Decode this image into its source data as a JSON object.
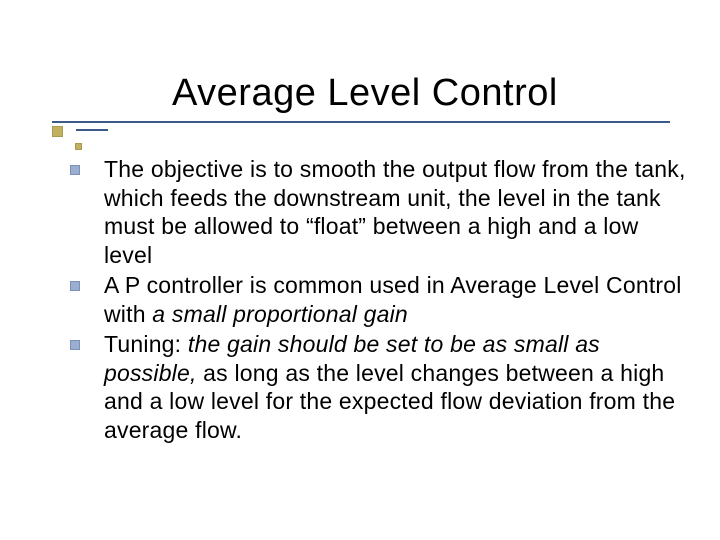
{
  "slide": {
    "title": "Average Level Control",
    "background_color": "#ffffff",
    "title_color": "#000000",
    "title_fontsize": 38,
    "underline_color": "#3a5a8a",
    "accent_square_color": "#c0b060",
    "bullet_marker_color": "#9aaed0",
    "body_fontsize": 23,
    "body_color": "#000000",
    "bullets": [
      {
        "segments": [
          {
            "text": "The objective is to smooth the output flow from the tank, which feeds the downstream unit, the level in the tank must be allowed to “float” between a high and a low level",
            "italic": false
          }
        ]
      },
      {
        "segments": [
          {
            "text": "A P controller is common used in Average Level Control with ",
            "italic": false
          },
          {
            "text": "a small proportional gain",
            "italic": true
          }
        ]
      },
      {
        "segments": [
          {
            "text": "Tuning: ",
            "italic": false
          },
          {
            "text": "the gain should be set to be as  small as possible,",
            "italic": true
          },
          {
            "text": " as long as the level changes between a high and a low level for the expected flow deviation from the average flow.",
            "italic": false
          }
        ]
      }
    ]
  }
}
